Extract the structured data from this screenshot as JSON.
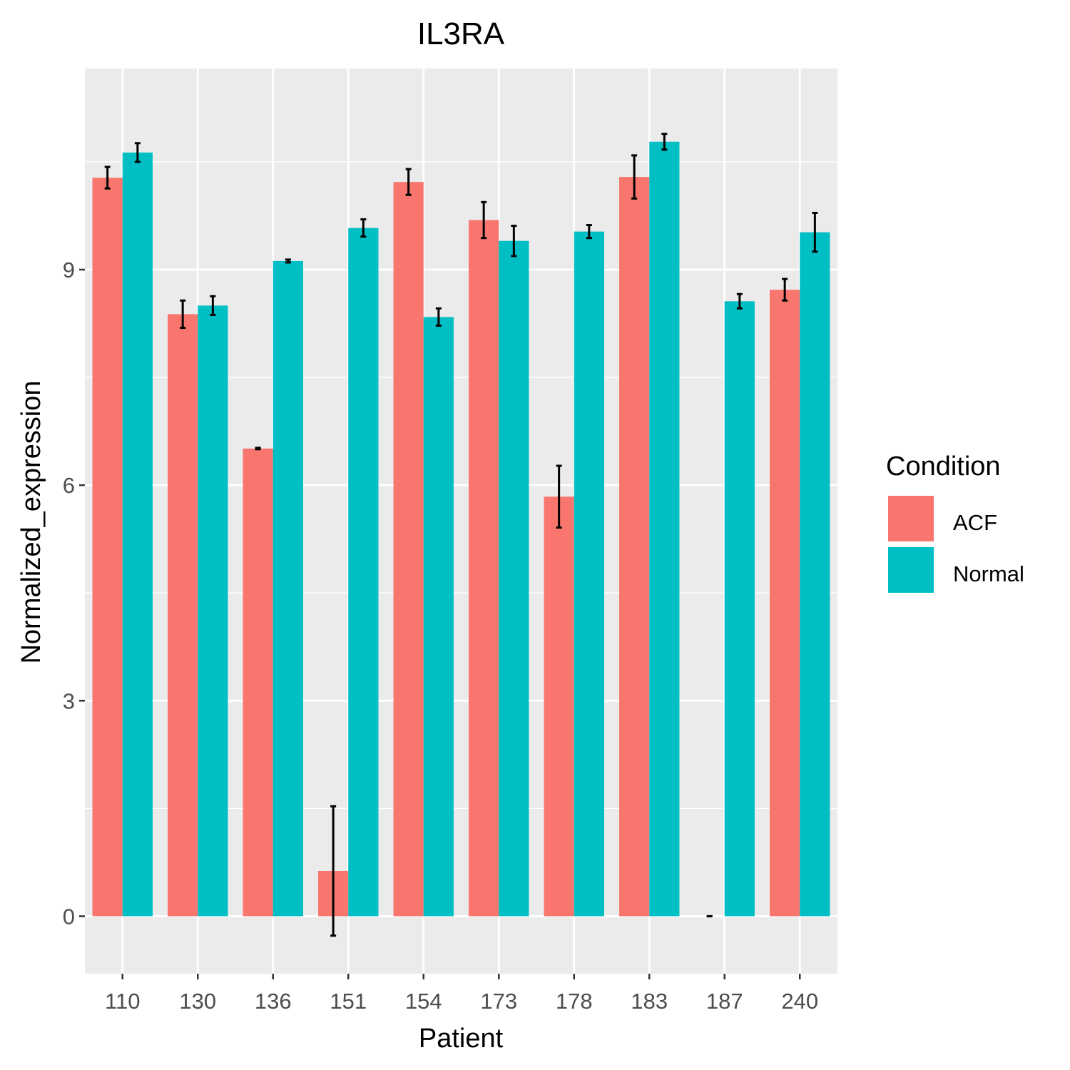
{
  "chart_data": {
    "type": "bar",
    "title": "IL3RA",
    "xlabel": "Patient",
    "ylabel": "Normalized_expression",
    "categories": [
      "110",
      "130",
      "136",
      "151",
      "154",
      "173",
      "178",
      "183",
      "187",
      "240"
    ],
    "series": [
      {
        "name": "ACF",
        "color": "#F8766D",
        "values": [
          10.28,
          8.38,
          6.51,
          0.63,
          10.22,
          9.69,
          5.84,
          10.29,
          0.0,
          8.72
        ],
        "error": [
          0.15,
          0.19,
          0.01,
          0.9,
          0.18,
          0.25,
          0.43,
          0.3,
          0.0,
          0.15
        ]
      },
      {
        "name": "Normal",
        "color": "#00BFC4",
        "values": [
          10.63,
          8.5,
          9.12,
          9.58,
          8.34,
          9.4,
          9.53,
          10.78,
          8.56,
          9.52
        ]
      }
    ],
    "errors_normal": [
      0.13,
      0.13,
      0.02,
      0.12,
      0.12,
      0.21,
      0.09,
      0.11,
      0.1,
      0.27
    ],
    "ylim": [
      -0.8,
      11.8
    ],
    "yticks": [
      0,
      3,
      6,
      9
    ],
    "grid": true,
    "legend": {
      "title": "Condition",
      "position": "right"
    }
  }
}
